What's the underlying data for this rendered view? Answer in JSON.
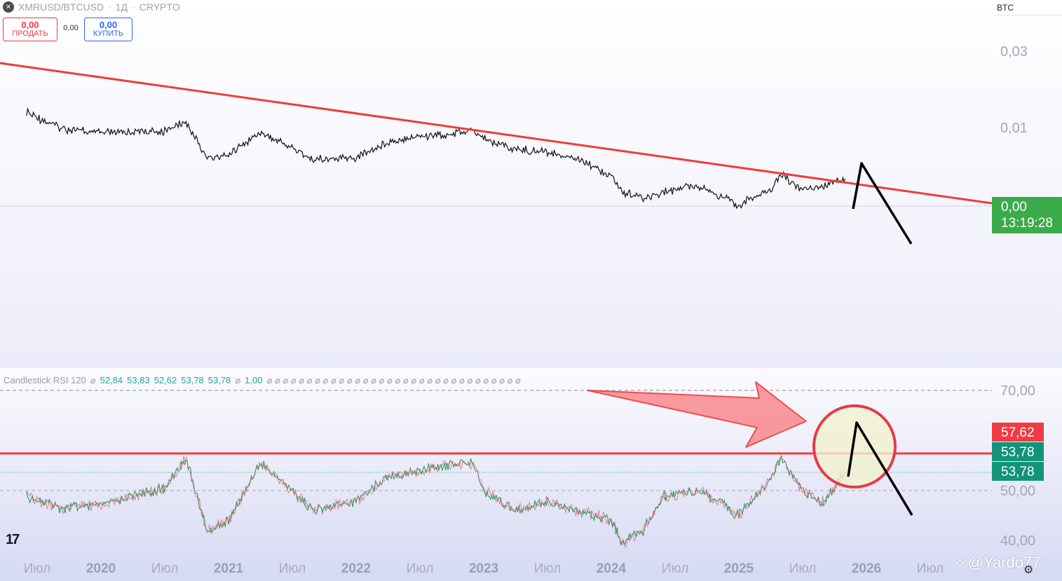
{
  "header": {
    "symbol_icon": "x-symbol-icon",
    "symbol": "XMRUSD/BTCUSD",
    "interval": "1Д",
    "exchange": "CRYPTO",
    "sep": "·"
  },
  "trade": {
    "sell_value": "0,00",
    "sell_label": "ПРОДАТЬ",
    "spread": "0,00",
    "buy_value": "0,00",
    "buy_label": "КУПИТЬ"
  },
  "currency": "BTC",
  "indicator": {
    "name": "Candlestick RSI 120",
    "values": [
      "52,84",
      "53,83",
      "52,62",
      "53,78",
      "53,78"
    ],
    "extra": "1,00",
    "empty_marker": "⌀"
  },
  "watermark": "@Yardo77",
  "colors": {
    "trend_red": "#ef3b3b",
    "price_green": "#3bab4a",
    "rsi_red_label": "#ef3b44",
    "rsi_teal_label": "#12937a",
    "arrow_fill": "#f98f95"
  },
  "chart_data": [
    {
      "type": "line",
      "pane": "price",
      "x_axis_labels": [
        "Июл",
        "2020",
        "Июл",
        "2021",
        "Июл",
        "2022",
        "Июл",
        "2023",
        "Июл",
        "2024",
        "Июл",
        "2025",
        "Июл",
        "2026",
        "Июл"
      ],
      "y_axis_labels": [
        "0,03",
        "0,01",
        "0,00"
      ],
      "y_scale": "log",
      "last_price_label": "0,00",
      "countdown_label": "13:19:28",
      "series": [
        {
          "x": [
            "2019-06",
            "2019-09",
            "2020-01",
            "2020-04",
            "2020-07",
            "2020-09",
            "2020-11",
            "2021-01",
            "2021-04",
            "2021-06",
            "2021-09",
            "2022-01",
            "2022-04",
            "2022-06",
            "2022-09",
            "2022-12",
            "2023-01",
            "2023-04",
            "2023-07",
            "2023-10",
            "2024-01",
            "2024-02",
            "2024-04",
            "2024-06",
            "2024-09",
            "2024-11",
            "2025-01",
            "2025-04",
            "2025-05",
            "2025-07",
            "2025-09",
            "2025-11"
          ],
          "y": [
            0.0125,
            0.0098,
            0.0091,
            0.0093,
            0.0094,
            0.0108,
            0.0064,
            0.0067,
            0.0092,
            0.008,
            0.0062,
            0.0064,
            0.008,
            0.0086,
            0.0089,
            0.0094,
            0.0085,
            0.0072,
            0.007,
            0.0063,
            0.0049,
            0.0039,
            0.0035,
            0.0039,
            0.0043,
            0.0037,
            0.0032,
            0.0041,
            0.005,
            0.004,
            0.0043,
            0.0047
          ]
        }
      ]
    },
    {
      "type": "line",
      "pane": "indicator",
      "title": "Candlestick RSI 120",
      "y_axis_labels": [
        "70,00",
        "50,00",
        "40,00"
      ],
      "ylim": [
        35,
        75
      ],
      "value_labels": [
        "57,62",
        "53,78",
        "53,78"
      ],
      "series": [
        {
          "x": [
            "2019-06",
            "2019-09",
            "2020-01",
            "2020-04",
            "2020-07",
            "2020-09",
            "2020-11",
            "2021-01",
            "2021-04",
            "2021-06",
            "2021-09",
            "2022-01",
            "2022-04",
            "2022-06",
            "2022-09",
            "2022-12",
            "2023-01",
            "2023-04",
            "2023-07",
            "2023-10",
            "2024-01",
            "2024-02",
            "2024-04",
            "2024-06",
            "2024-09",
            "2024-11",
            "2025-01",
            "2025-04",
            "2025-05",
            "2025-07",
            "2025-09",
            "2025-11"
          ],
          "y": [
            49.0,
            46.5,
            47.0,
            49.0,
            50.5,
            56.5,
            42.0,
            44.0,
            55.5,
            52.0,
            46.0,
            48.0,
            53.0,
            53.5,
            55.0,
            55.5,
            50.0,
            46.0,
            48.0,
            46.0,
            44.0,
            39.5,
            42.0,
            49.0,
            50.0,
            48.0,
            45.0,
            52.5,
            56.5,
            50.0,
            47.5,
            53.78
          ]
        }
      ]
    }
  ]
}
